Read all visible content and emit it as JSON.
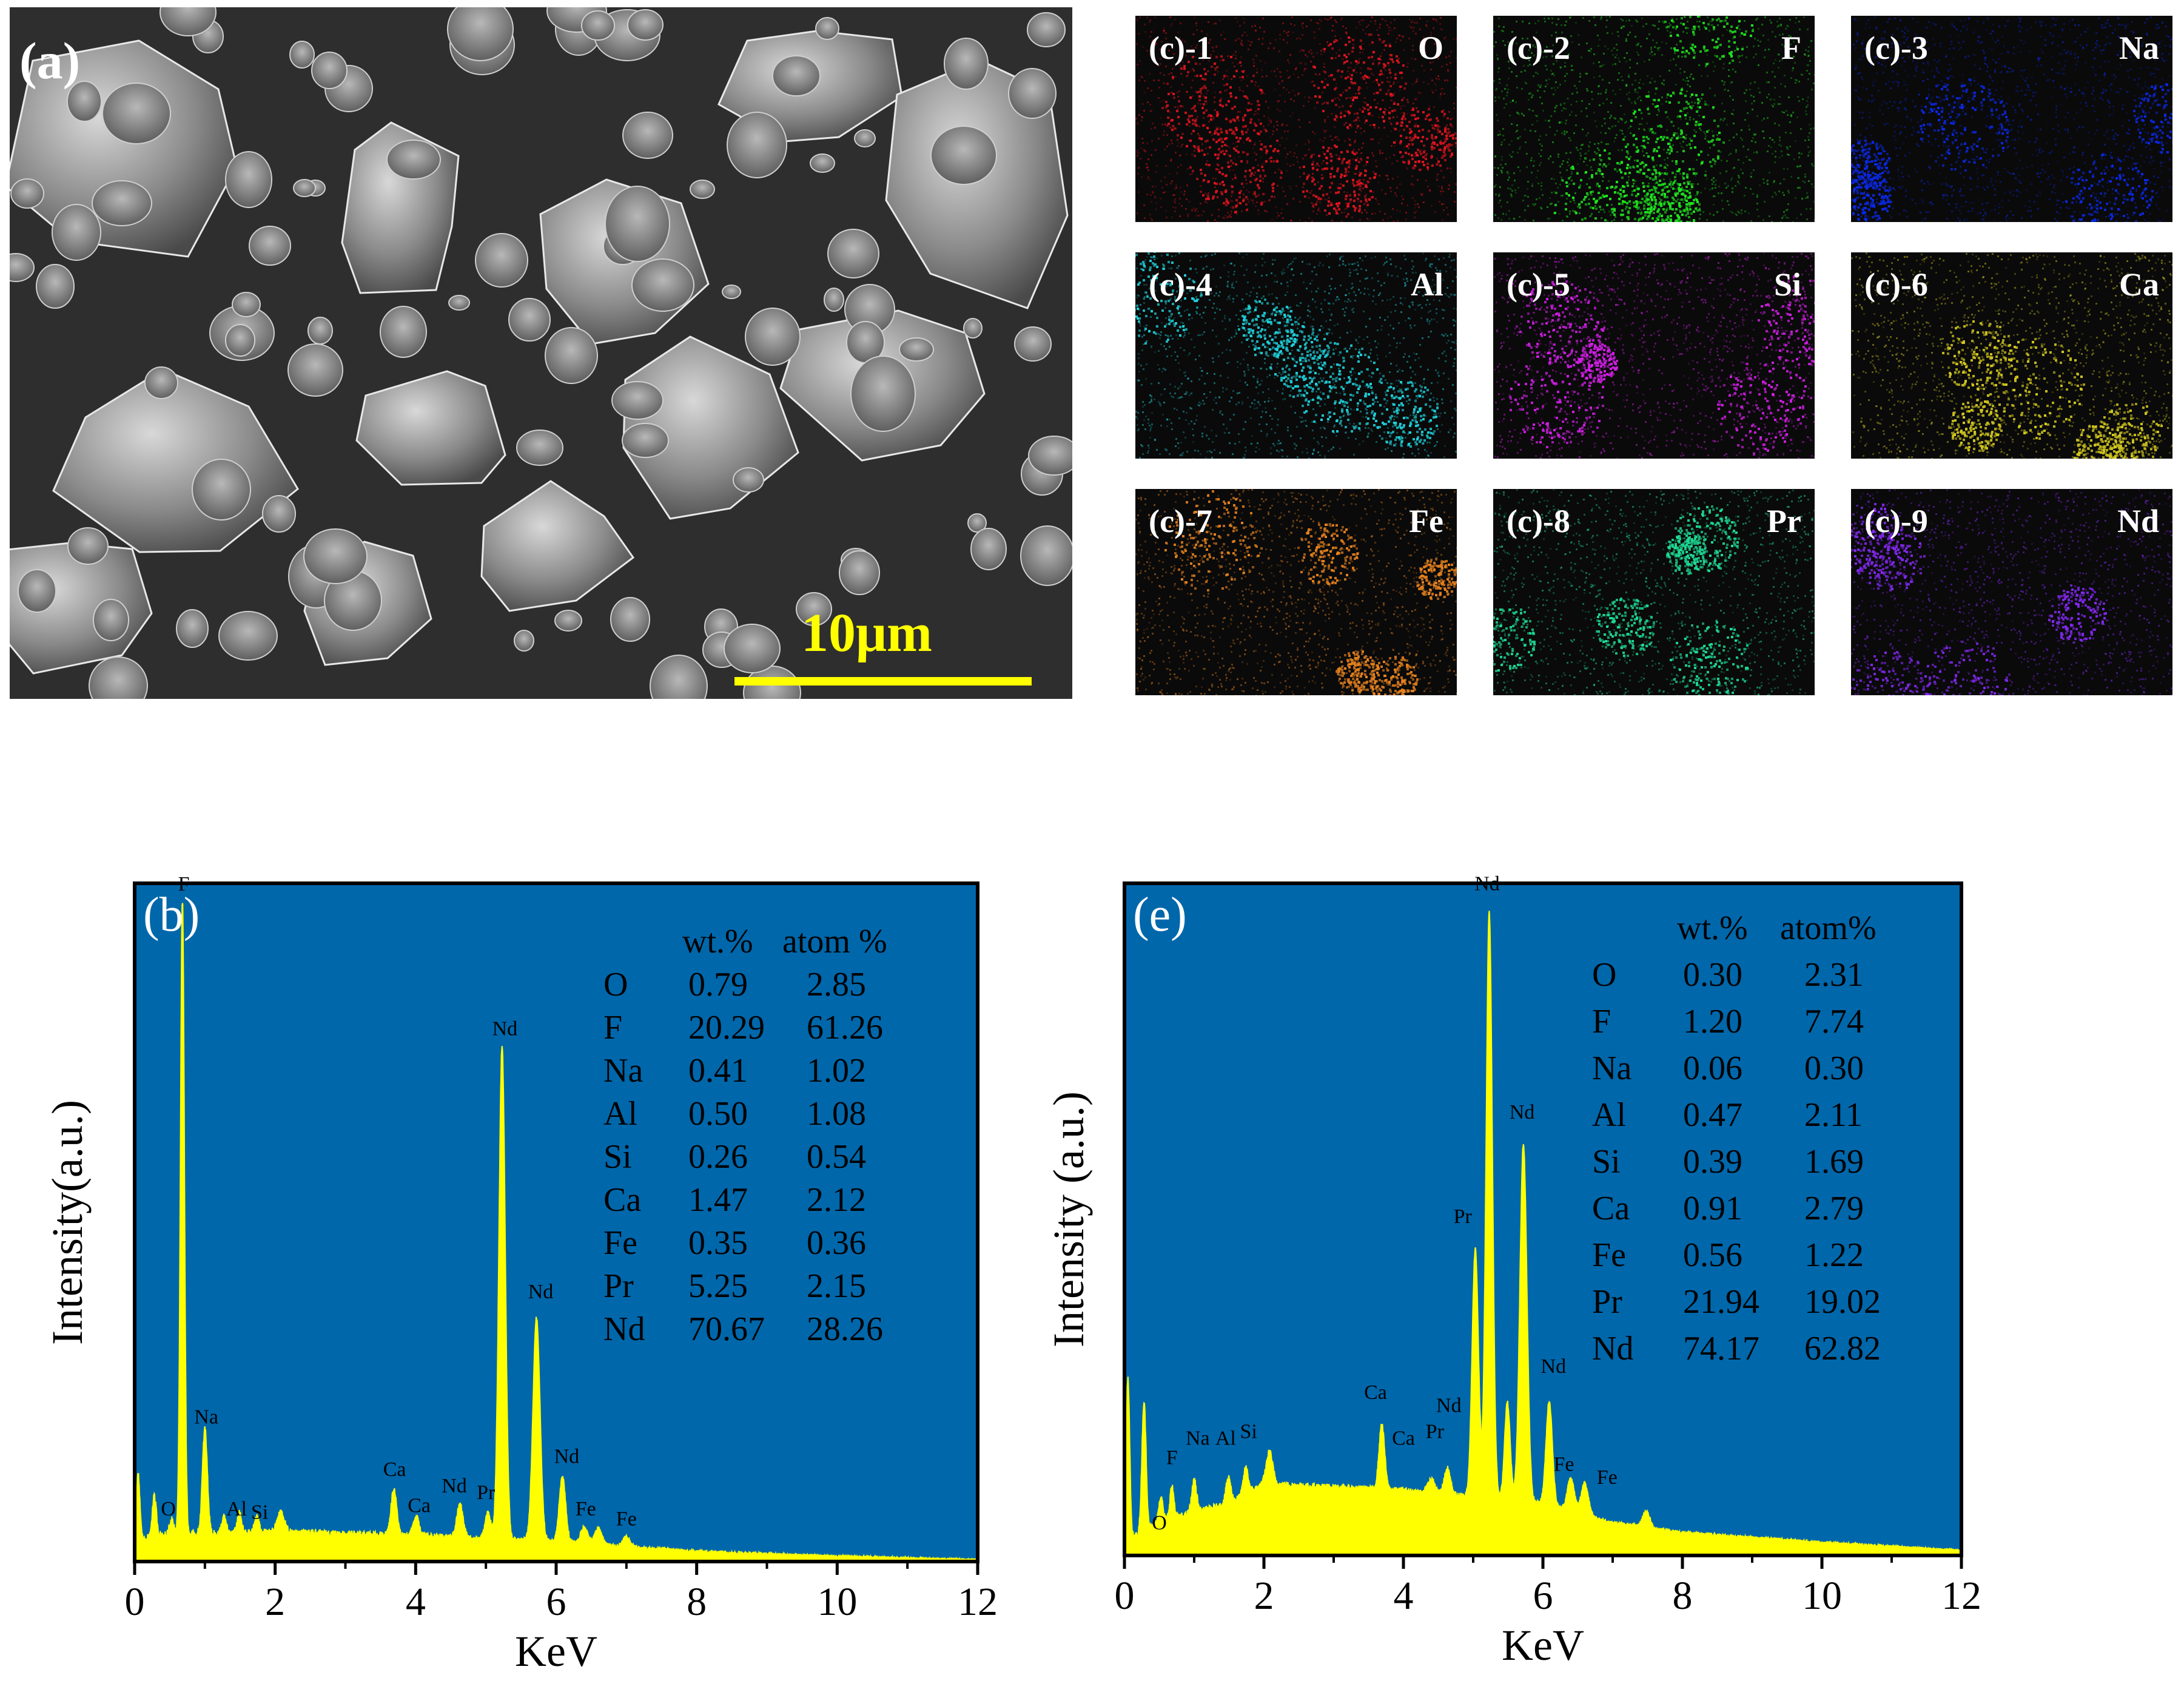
{
  "sem": {
    "label": "(a)",
    "scale_text": "10μm"
  },
  "maps": [
    {
      "label": "(c)-1",
      "element": "O",
      "color": "#e0141e"
    },
    {
      "label": "(c)-2",
      "element": "F",
      "color": "#1ee61e"
    },
    {
      "label": "(c)-3",
      "element": "Na",
      "color": "#0a28e6"
    },
    {
      "label": "(c)-4",
      "element": "Al",
      "color": "#1ed2dc"
    },
    {
      "label": "(c)-5",
      "element": "Si",
      "color": "#d21ee6"
    },
    {
      "label": "(c)-6",
      "element": "Ca",
      "color": "#d2c81e"
    },
    {
      "label": "(c)-7",
      "element": "Fe",
      "color": "#e6821e"
    },
    {
      "label": "(c)-8",
      "element": "Pr",
      "color": "#1edc96"
    },
    {
      "label": "(c)-9",
      "element": "Nd",
      "color": "#8228f0"
    }
  ],
  "colors": {
    "plot_bg": "#0067ab",
    "spectrum": "#ffff00",
    "text": "#000000"
  },
  "chart_data": [
    {
      "type": "area",
      "panel_label": "(b)",
      "xlabel": "KeV",
      "ylabel": "Intensity(a.u.)",
      "xlim": [
        0,
        12
      ],
      "x_ticks": [
        "0",
        "2",
        "4",
        "6",
        "8",
        "10",
        "12"
      ],
      "table_headers": [
        "wt.%",
        "atom %"
      ],
      "table_rows": [
        [
          "O",
          "0.79",
          "2.85"
        ],
        [
          "F",
          "20.29",
          "61.26"
        ],
        [
          "Na",
          "0.41",
          "1.02"
        ],
        [
          "Al",
          "0.50",
          "1.08"
        ],
        [
          "Si",
          "0.26",
          "0.54"
        ],
        [
          "Ca",
          "1.47",
          "2.12"
        ],
        [
          "Fe",
          "0.35",
          "0.36"
        ],
        [
          "Pr",
          "5.25",
          "2.15"
        ],
        [
          "Nd",
          "70.67",
          "28.26"
        ]
      ],
      "background": [
        [
          0,
          0.03
        ],
        [
          0.35,
          0.04
        ],
        [
          2,
          0.045
        ],
        [
          4,
          0.04
        ],
        [
          6,
          0.03
        ],
        [
          8,
          0.015
        ],
        [
          10,
          0.008
        ],
        [
          12,
          0.003
        ]
      ],
      "peaks": [
        {
          "x": 0.05,
          "h": 0.1,
          "w": 0.025
        },
        {
          "x": 0.28,
          "h": 0.06,
          "w": 0.03
        },
        {
          "x": 0.53,
          "h": 0.025,
          "w": 0.03
        },
        {
          "x": 0.68,
          "h": 0.97,
          "w": 0.028
        },
        {
          "x": 1.0,
          "h": 0.16,
          "w": 0.035
        },
        {
          "x": 1.27,
          "h": 0.025,
          "w": 0.03
        },
        {
          "x": 1.49,
          "h": 0.03,
          "w": 0.03
        },
        {
          "x": 1.74,
          "h": 0.025,
          "w": 0.03
        },
        {
          "x": 2.08,
          "h": 0.03,
          "w": 0.05
        },
        {
          "x": 3.69,
          "h": 0.07,
          "w": 0.04
        },
        {
          "x": 4.01,
          "h": 0.03,
          "w": 0.04
        },
        {
          "x": 4.63,
          "h": 0.05,
          "w": 0.045
        },
        {
          "x": 5.03,
          "h": 0.04,
          "w": 0.04
        },
        {
          "x": 5.23,
          "h": 0.75,
          "w": 0.045
        },
        {
          "x": 5.72,
          "h": 0.34,
          "w": 0.05
        },
        {
          "x": 6.09,
          "h": 0.1,
          "w": 0.045
        },
        {
          "x": 6.4,
          "h": 0.025,
          "w": 0.05
        },
        {
          "x": 6.6,
          "h": 0.025,
          "w": 0.05
        },
        {
          "x": 7.0,
          "h": 0.015,
          "w": 0.05
        }
      ],
      "peak_labels": [
        {
          "text": "F",
          "x": 0.7,
          "y": 1.02
        },
        {
          "text": "Na",
          "x": 1.02,
          "y": 0.21
        },
        {
          "text": "O",
          "x": 0.48,
          "y": 0.07
        },
        {
          "text": "Al",
          "x": 1.45,
          "y": 0.07
        },
        {
          "text": "Si",
          "x": 1.78,
          "y": 0.065
        },
        {
          "text": "Ca",
          "x": 3.7,
          "y": 0.13
        },
        {
          "text": "Ca",
          "x": 4.05,
          "y": 0.075
        },
        {
          "text": "Nd",
          "x": 4.55,
          "y": 0.105
        },
        {
          "text": "Pr",
          "x": 5.0,
          "y": 0.095
        },
        {
          "text": "Nd",
          "x": 5.27,
          "y": 0.8
        },
        {
          "text": "Nd",
          "x": 5.78,
          "y": 0.4
        },
        {
          "text": "Nd",
          "x": 6.15,
          "y": 0.15
        },
        {
          "text": "Fe",
          "x": 6.42,
          "y": 0.07
        },
        {
          "text": "Fe",
          "x": 7.0,
          "y": 0.055
        }
      ]
    },
    {
      "type": "area",
      "panel_label": "(e)",
      "xlabel": "KeV",
      "ylabel": "Intensity (a.u.)",
      "xlim": [
        0,
        12
      ],
      "x_ticks": [
        "0",
        "2",
        "4",
        "6",
        "8",
        "10",
        "12"
      ],
      "table_headers": [
        "wt.%",
        "atom%"
      ],
      "table_rows": [
        [
          "O",
          "0.30",
          "2.31"
        ],
        [
          "F",
          "1.20",
          "7.74"
        ],
        [
          "Na",
          "0.06",
          "0.30"
        ],
        [
          "Al",
          "0.47",
          "2.11"
        ],
        [
          "Si",
          "0.39",
          "1.69"
        ],
        [
          "Ca",
          "0.91",
          "2.79"
        ],
        [
          "Fe",
          "0.56",
          "1.22"
        ],
        [
          "Pr",
          "21.94",
          "19.02"
        ],
        [
          "Nd",
          "74.17",
          "62.82"
        ]
      ],
      "background": [
        [
          0,
          0.02
        ],
        [
          0.5,
          0.05
        ],
        [
          1.5,
          0.08
        ],
        [
          2,
          0.11
        ],
        [
          4,
          0.1
        ],
        [
          6,
          0.08
        ],
        [
          7,
          0.05
        ],
        [
          8,
          0.035
        ],
        [
          10,
          0.02
        ],
        [
          12,
          0.008
        ]
      ],
      "peaks": [
        {
          "x": 0.05,
          "h": 0.25,
          "w": 0.025
        },
        {
          "x": 0.28,
          "h": 0.2,
          "w": 0.03
        },
        {
          "x": 0.52,
          "h": 0.04,
          "w": 0.03
        },
        {
          "x": 0.68,
          "h": 0.05,
          "w": 0.03
        },
        {
          "x": 1.0,
          "h": 0.05,
          "w": 0.035
        },
        {
          "x": 1.49,
          "h": 0.04,
          "w": 0.035
        },
        {
          "x": 1.74,
          "h": 0.04,
          "w": 0.035
        },
        {
          "x": 2.08,
          "h": 0.05,
          "w": 0.045
        },
        {
          "x": 3.69,
          "h": 0.1,
          "w": 0.04
        },
        {
          "x": 4.4,
          "h": 0.02,
          "w": 0.05
        },
        {
          "x": 4.63,
          "h": 0.04,
          "w": 0.045
        },
        {
          "x": 5.03,
          "h": 0.38,
          "w": 0.045
        },
        {
          "x": 5.23,
          "h": 0.9,
          "w": 0.045
        },
        {
          "x": 5.49,
          "h": 0.15,
          "w": 0.04
        },
        {
          "x": 5.72,
          "h": 0.55,
          "w": 0.05
        },
        {
          "x": 6.09,
          "h": 0.16,
          "w": 0.045
        },
        {
          "x": 6.4,
          "h": 0.05,
          "w": 0.05
        },
        {
          "x": 6.6,
          "h": 0.05,
          "w": 0.05
        },
        {
          "x": 7.48,
          "h": 0.025,
          "w": 0.05
        }
      ],
      "peak_labels": [
        {
          "text": "Nd",
          "x": 5.2,
          "y": 1.02
        },
        {
          "text": "Nd",
          "x": 5.7,
          "y": 0.67
        },
        {
          "text": "Pr",
          "x": 4.85,
          "y": 0.51
        },
        {
          "text": "Nd",
          "x": 6.15,
          "y": 0.28
        },
        {
          "text": "O",
          "x": 0.5,
          "y": 0.04
        },
        {
          "text": "F",
          "x": 0.68,
          "y": 0.14
        },
        {
          "text": "Na",
          "x": 1.05,
          "y": 0.17
        },
        {
          "text": "Al",
          "x": 1.45,
          "y": 0.17
        },
        {
          "text": "Si",
          "x": 1.78,
          "y": 0.18
        },
        {
          "text": "Ca",
          "x": 3.6,
          "y": 0.24
        },
        {
          "text": "Ca",
          "x": 4.0,
          "y": 0.17
        },
        {
          "text": "Pr",
          "x": 4.45,
          "y": 0.18
        },
        {
          "text": "Nd",
          "x": 4.65,
          "y": 0.22
        },
        {
          "text": "Fe",
          "x": 6.3,
          "y": 0.13
        },
        {
          "text": "Fe",
          "x": 6.92,
          "y": 0.11
        }
      ]
    }
  ]
}
